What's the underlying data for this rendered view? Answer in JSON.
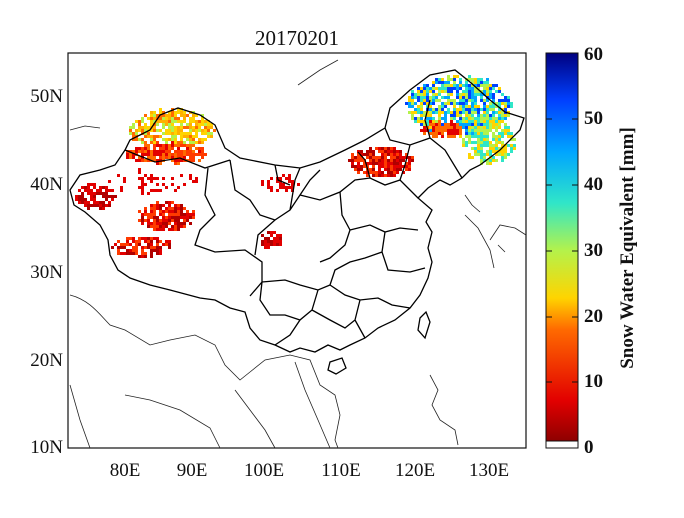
{
  "title": "20170201",
  "axes": {
    "lat_ticks": [
      "50N",
      "40N",
      "30N",
      "20N",
      "10N"
    ],
    "lon_ticks": [
      "80E",
      "90E",
      "100E",
      "110E",
      "120E",
      "130E"
    ]
  },
  "colorbar": {
    "label": "Snow Water Equivalent [mm]",
    "ticks": [
      "0",
      "10",
      "20",
      "30",
      "40",
      "50",
      "60"
    ],
    "range": [
      0,
      60
    ],
    "colormap": [
      "#7f0000",
      "#e20000",
      "#ff6a00",
      "#ffd400",
      "#b4f24b",
      "#30e6c8",
      "#00a5ff",
      "#0040ff",
      "#00007f"
    ]
  }
}
